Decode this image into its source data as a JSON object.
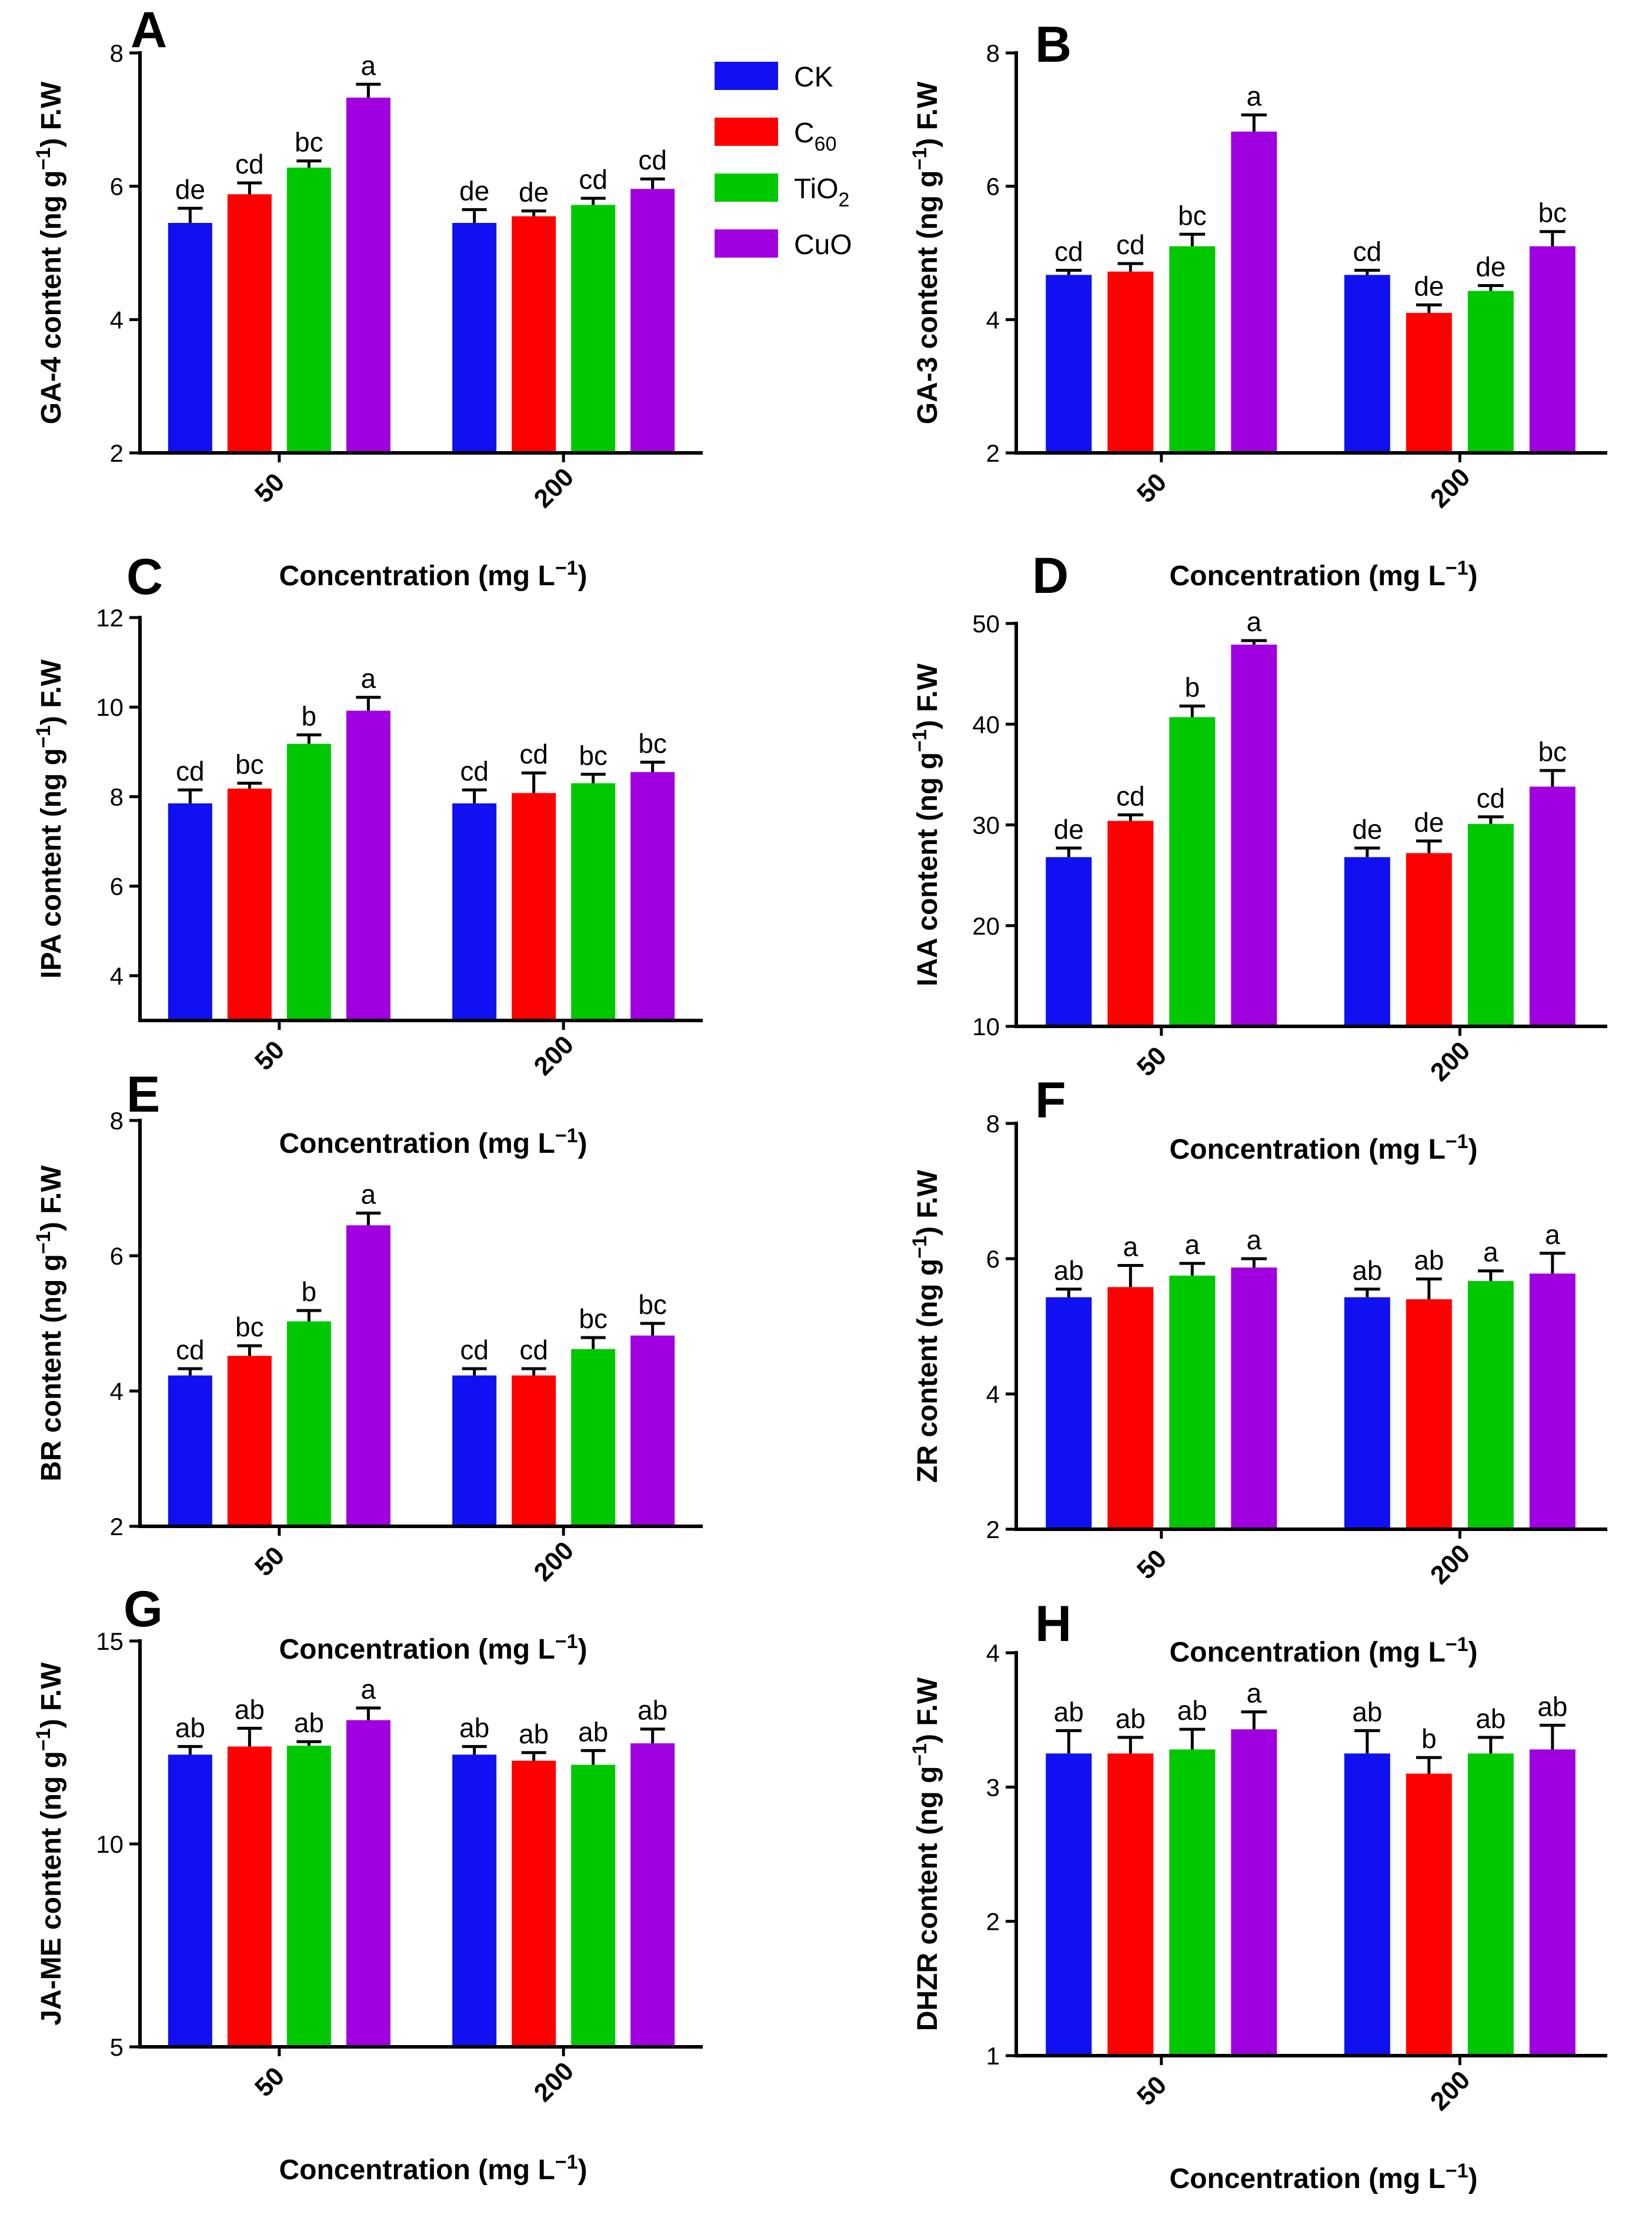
{
  "colors": {
    "CK": "#1010f0",
    "C60": "#ff0000",
    "TiO2": "#00c800",
    "CuO": "#a000e0"
  },
  "legend": [
    {
      "key": "CK",
      "label": "CK",
      "base": "CK",
      "sub": ""
    },
    {
      "key": "C60",
      "label": "C60",
      "base": "C",
      "sub": "60"
    },
    {
      "key": "TiO2",
      "label": "TiO2",
      "base": "TiO",
      "sub": "2"
    },
    {
      "key": "CuO",
      "label": "CuO",
      "base": "CuO",
      "sub": ""
    }
  ],
  "chart_data": [
    {
      "panel": "A",
      "type": "bar",
      "ylabel": "GA-4 content (ng g-1) F.W",
      "xlabel": "Concentration (mg L-1)",
      "categories": [
        "50",
        "200"
      ],
      "ylim": [
        2,
        8
      ],
      "yticks": [
        2,
        4,
        6,
        8
      ],
      "series": [
        {
          "name": "CK",
          "values": [
            5.45,
            5.45
          ],
          "errors": [
            0.22,
            0.2
          ],
          "letters": [
            "de",
            "de"
          ]
        },
        {
          "name": "C60",
          "values": [
            5.88,
            5.55
          ],
          "errors": [
            0.17,
            0.08
          ],
          "letters": [
            "cd",
            "de"
          ]
        },
        {
          "name": "TiO2",
          "values": [
            6.28,
            5.72
          ],
          "errors": [
            0.1,
            0.1
          ],
          "letters": [
            "bc",
            "cd"
          ]
        },
        {
          "name": "CuO",
          "values": [
            7.33,
            5.96
          ],
          "errors": [
            0.2,
            0.15
          ],
          "letters": [
            "a",
            "cd"
          ]
        }
      ]
    },
    {
      "panel": "B",
      "type": "bar",
      "ylabel": "GA-3 content (ng g-1) F.W",
      "xlabel": "Concentration (mg L-1)",
      "categories": [
        "50",
        "200"
      ],
      "ylim": [
        2,
        8
      ],
      "yticks": [
        2,
        4,
        6,
        8
      ],
      "series": [
        {
          "name": "CK",
          "values": [
            4.67,
            4.67
          ],
          "errors": [
            0.07,
            0.07
          ],
          "letters": [
            "cd",
            "cd"
          ]
        },
        {
          "name": "C60",
          "values": [
            4.72,
            4.1
          ],
          "errors": [
            0.12,
            0.12
          ],
          "letters": [
            "cd",
            "de"
          ]
        },
        {
          "name": "TiO2",
          "values": [
            5.1,
            4.43
          ],
          "errors": [
            0.18,
            0.08
          ],
          "letters": [
            "bc",
            "de"
          ]
        },
        {
          "name": "CuO",
          "values": [
            6.82,
            5.1
          ],
          "errors": [
            0.25,
            0.22
          ],
          "letters": [
            "a",
            "bc"
          ]
        }
      ]
    },
    {
      "panel": "C",
      "type": "bar",
      "ylabel": "IPA content (ng g-1) F.W",
      "xlabel": "Concentration (mg L-1)",
      "categories": [
        "50",
        "200"
      ],
      "ylim": [
        3,
        12
      ],
      "yticks": [
        4,
        6,
        8,
        10,
        12
      ],
      "series": [
        {
          "name": "CK",
          "values": [
            7.85,
            7.85
          ],
          "errors": [
            0.3,
            0.3
          ],
          "letters": [
            "cd",
            "cd"
          ]
        },
        {
          "name": "C60",
          "values": [
            8.18,
            8.08
          ],
          "errors": [
            0.12,
            0.45
          ],
          "letters": [
            "bc",
            "cd"
          ]
        },
        {
          "name": "TiO2",
          "values": [
            9.18,
            8.3
          ],
          "errors": [
            0.2,
            0.2
          ],
          "letters": [
            "b",
            "bc"
          ]
        },
        {
          "name": "CuO",
          "values": [
            9.92,
            8.55
          ],
          "errors": [
            0.3,
            0.22
          ],
          "letters": [
            "a",
            "bc"
          ]
        }
      ]
    },
    {
      "panel": "D",
      "type": "bar",
      "ylabel": "IAA content (ng g-1) F.W",
      "xlabel": "Concentration (mg L-1)",
      "categories": [
        "50",
        "200"
      ],
      "ylim": [
        10,
        50
      ],
      "yticks": [
        10,
        20,
        30,
        40,
        50
      ],
      "series": [
        {
          "name": "CK",
          "values": [
            26.8,
            26.8
          ],
          "errors": [
            0.9,
            0.9
          ],
          "letters": [
            "de",
            "de"
          ]
        },
        {
          "name": "C60",
          "values": [
            30.4,
            27.2
          ],
          "errors": [
            0.6,
            1.2
          ],
          "letters": [
            "cd",
            "de"
          ]
        },
        {
          "name": "TiO2",
          "values": [
            40.7,
            30.1
          ],
          "errors": [
            1.1,
            0.7
          ],
          "letters": [
            "b",
            "cd"
          ]
        },
        {
          "name": "CuO",
          "values": [
            47.9,
            33.8
          ],
          "errors": [
            0.4,
            1.6
          ],
          "letters": [
            "a",
            "bc"
          ]
        }
      ]
    },
    {
      "panel": "E",
      "type": "bar",
      "ylabel": "BR content (ng g-1) F.W",
      "xlabel": "Concentration (mg L-1)",
      "categories": [
        "50",
        "200"
      ],
      "ylim": [
        2,
        8
      ],
      "yticks": [
        2,
        4,
        6,
        8
      ],
      "series": [
        {
          "name": "CK",
          "values": [
            4.23,
            4.23
          ],
          "errors": [
            0.1,
            0.1
          ],
          "letters": [
            "cd",
            "cd"
          ]
        },
        {
          "name": "C60",
          "values": [
            4.52,
            4.23
          ],
          "errors": [
            0.15,
            0.1
          ],
          "letters": [
            "bc",
            "cd"
          ]
        },
        {
          "name": "TiO2",
          "values": [
            5.03,
            4.62
          ],
          "errors": [
            0.16,
            0.17
          ],
          "letters": [
            "b",
            "bc"
          ]
        },
        {
          "name": "CuO",
          "values": [
            6.45,
            4.82
          ],
          "errors": [
            0.18,
            0.18
          ],
          "letters": [
            "a",
            "bc"
          ]
        }
      ]
    },
    {
      "panel": "F",
      "type": "bar",
      "ylabel": "ZR content (ng g-1) F.W",
      "xlabel": "Concentration (mg L-1)",
      "categories": [
        "50",
        "200"
      ],
      "ylim": [
        2,
        8
      ],
      "yticks": [
        2,
        4,
        6,
        8
      ],
      "series": [
        {
          "name": "CK",
          "values": [
            5.43,
            5.43
          ],
          "errors": [
            0.12,
            0.12
          ],
          "letters": [
            "ab",
            "ab"
          ]
        },
        {
          "name": "C60",
          "values": [
            5.58,
            5.4
          ],
          "errors": [
            0.32,
            0.3
          ],
          "letters": [
            "a",
            "ab"
          ]
        },
        {
          "name": "TiO2",
          "values": [
            5.75,
            5.67
          ],
          "errors": [
            0.18,
            0.15
          ],
          "letters": [
            "a",
            "a"
          ]
        },
        {
          "name": "CuO",
          "values": [
            5.87,
            5.78
          ],
          "errors": [
            0.13,
            0.3
          ],
          "letters": [
            "a",
            "a"
          ]
        }
      ]
    },
    {
      "panel": "G",
      "type": "bar",
      "ylabel": "JA-ME content (ng g-1) F.W",
      "xlabel": "Concentration (mg L-1)",
      "categories": [
        "50",
        "200"
      ],
      "ylim": [
        5,
        15
      ],
      "yticks": [
        5,
        10,
        15
      ],
      "series": [
        {
          "name": "CK",
          "values": [
            12.2,
            12.2
          ],
          "errors": [
            0.2,
            0.2
          ],
          "letters": [
            "ab",
            "ab"
          ]
        },
        {
          "name": "C60",
          "values": [
            12.4,
            12.05
          ],
          "errors": [
            0.45,
            0.2
          ],
          "letters": [
            "ab",
            "ab"
          ]
        },
        {
          "name": "TiO2",
          "values": [
            12.42,
            11.95
          ],
          "errors": [
            0.1,
            0.35
          ],
          "letters": [
            "ab",
            "ab"
          ]
        },
        {
          "name": "CuO",
          "values": [
            13.05,
            12.48
          ],
          "errors": [
            0.3,
            0.35
          ],
          "letters": [
            "a",
            "ab"
          ]
        }
      ]
    },
    {
      "panel": "H",
      "type": "bar",
      "ylabel": "DHZR content (ng g-1) F.W",
      "xlabel": "Concentration (mg L-1)",
      "categories": [
        "50",
        "200"
      ],
      "ylim": [
        1,
        4
      ],
      "yticks": [
        1,
        2,
        3,
        4
      ],
      "series": [
        {
          "name": "CK",
          "values": [
            3.25,
            3.25
          ],
          "errors": [
            0.17,
            0.17
          ],
          "letters": [
            "ab",
            "ab"
          ]
        },
        {
          "name": "C60",
          "values": [
            3.25,
            3.1
          ],
          "errors": [
            0.12,
            0.12
          ],
          "letters": [
            "ab",
            "b"
          ]
        },
        {
          "name": "TiO2",
          "values": [
            3.28,
            3.25
          ],
          "errors": [
            0.15,
            0.12
          ],
          "letters": [
            "ab",
            "ab"
          ]
        },
        {
          "name": "CuO",
          "values": [
            3.43,
            3.28
          ],
          "errors": [
            0.13,
            0.18
          ],
          "letters": [
            "a",
            "ab"
          ]
        }
      ]
    }
  ]
}
